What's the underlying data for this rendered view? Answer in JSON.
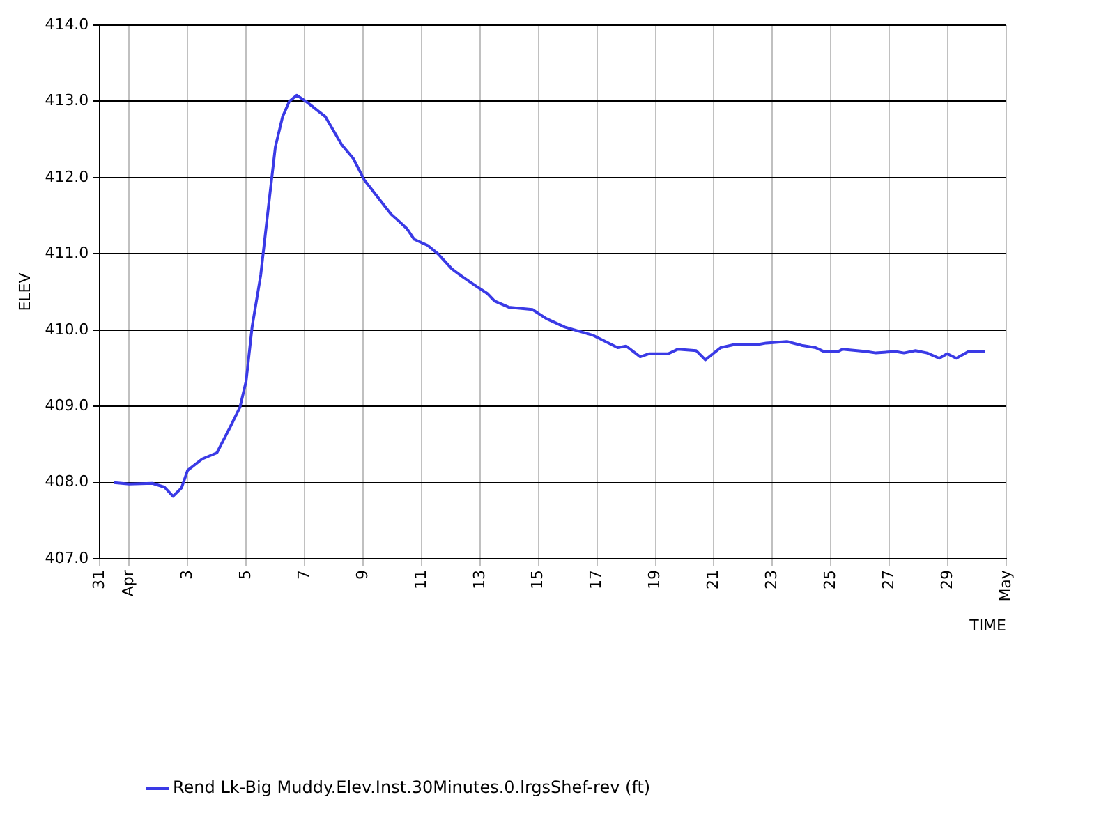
{
  "chart_data": {
    "type": "line",
    "xlabel": "TIME",
    "ylabel": "ELEV",
    "x": [
      "--03-31T11:30",
      "--04-01T00:00",
      "--04-01T19:00",
      "--04-02T05:00",
      "--04-02T12:00",
      "--04-02T19:00",
      "--04-03T00:00",
      "--04-03T12:00",
      "--04-04T00:00",
      "--04-04T11:00",
      "--04-04T19:00",
      "--04-05T00:00",
      "--04-05T05:00",
      "--04-05T12:00",
      "--04-05T18:00",
      "--04-06T00:00",
      "--04-06T06:00",
      "--04-06T11:30",
      "--04-06T17:30",
      "--04-07T01:00",
      "--04-07T17:00",
      "--04-08T06:30",
      "--04-08T16:00",
      "--04-09T01:00",
      "--04-09T23:00",
      "--04-10T06:00",
      "--04-10T12:00",
      "--04-10T18:00",
      "--04-11T05:00",
      "--04-11T13:30",
      "--04-12T01:00",
      "--04-12T09:30",
      "--04-12T20:30",
      "--04-13T06:00",
      "--04-13T12:00",
      "--04-13T23:30",
      "--04-14T19:00",
      "--04-15T06:30",
      "--04-15T21:30",
      "--04-16T21:00",
      "--04-17T17:00",
      "--04-18T00:00",
      "--04-18T11:30",
      "--04-18T19:00",
      "--04-19T10:30",
      "--04-19T18:30",
      "--04-20T09:30",
      "--04-20T17:00",
      "--04-21T05:30",
      "--04-21T17:00",
      "--04-22T12:00",
      "--04-22T19:00",
      "--04-23T12:00",
      "--04-24T00:00",
      "--04-24T11:30",
      "--04-24T18:00",
      "--04-25T06:00",
      "--04-25T09:30",
      "--04-26T05:00",
      "--04-26T13:00",
      "--04-27T05:00",
      "--04-27T12:00",
      "--04-27T21:30",
      "--04-28T07:00",
      "--04-28T17:00",
      "--04-28T23:30",
      "--04-29T07:00",
      "--04-29T17:00",
      "--04-30T06:30"
    ],
    "series": [
      {
        "name": "Rend Lk-Big Muddy.Elev.Inst.30Minutes.0.lrgsShef-rev (ft)",
        "color": "#3a3ae6",
        "values": [
          408.0,
          407.98,
          407.99,
          407.94,
          407.82,
          407.93,
          408.16,
          408.31,
          408.39,
          408.73,
          408.99,
          409.33,
          410.05,
          410.72,
          411.57,
          412.4,
          412.8,
          413.0,
          413.08,
          413.0,
          412.8,
          412.43,
          412.25,
          411.97,
          411.52,
          411.42,
          411.33,
          411.19,
          411.11,
          411.0,
          410.8,
          410.7,
          410.58,
          410.48,
          410.38,
          410.3,
          410.27,
          410.15,
          410.04,
          409.93,
          409.77,
          409.79,
          409.65,
          409.69,
          409.69,
          409.75,
          409.73,
          409.61,
          409.77,
          409.81,
          409.81,
          409.83,
          409.85,
          409.8,
          409.77,
          409.72,
          409.72,
          409.75,
          409.72,
          409.7,
          409.72,
          409.7,
          409.73,
          409.7,
          409.63,
          409.69,
          409.63,
          409.72,
          409.72
        ]
      }
    ],
    "xlim": [
      "--03-31",
      "--05-01"
    ],
    "xticks": [
      {
        "value": "--03-31",
        "label": "31"
      },
      {
        "value": "--04-01",
        "label": "Apr"
      },
      {
        "value": "--04-03",
        "label": "3"
      },
      {
        "value": "--04-05",
        "label": "5"
      },
      {
        "value": "--04-07",
        "label": "7"
      },
      {
        "value": "--04-09",
        "label": "9"
      },
      {
        "value": "--04-11",
        "label": "11"
      },
      {
        "value": "--04-13",
        "label": "13"
      },
      {
        "value": "--04-15",
        "label": "15"
      },
      {
        "value": "--04-17",
        "label": "17"
      },
      {
        "value": "--04-19",
        "label": "19"
      },
      {
        "value": "--04-21",
        "label": "21"
      },
      {
        "value": "--04-23",
        "label": "23"
      },
      {
        "value": "--04-25",
        "label": "25"
      },
      {
        "value": "--04-27",
        "label": "27"
      },
      {
        "value": "--04-29",
        "label": "29"
      },
      {
        "value": "--05-01",
        "label": "May"
      }
    ],
    "ylim": [
      407,
      414
    ],
    "yticks": [
      {
        "value": 407,
        "label": "407.0"
      },
      {
        "value": 408,
        "label": "408.0"
      },
      {
        "value": 409,
        "label": "409.0"
      },
      {
        "value": 410,
        "label": "410.0"
      },
      {
        "value": 411,
        "label": "411.0"
      },
      {
        "value": 412,
        "label": "412.0"
      },
      {
        "value": 413,
        "label": "413.0"
      },
      {
        "value": 414,
        "label": "414.0"
      }
    ],
    "grid": true,
    "legend": "bottom",
    "marker": "none",
    "line_style": "solid"
  }
}
